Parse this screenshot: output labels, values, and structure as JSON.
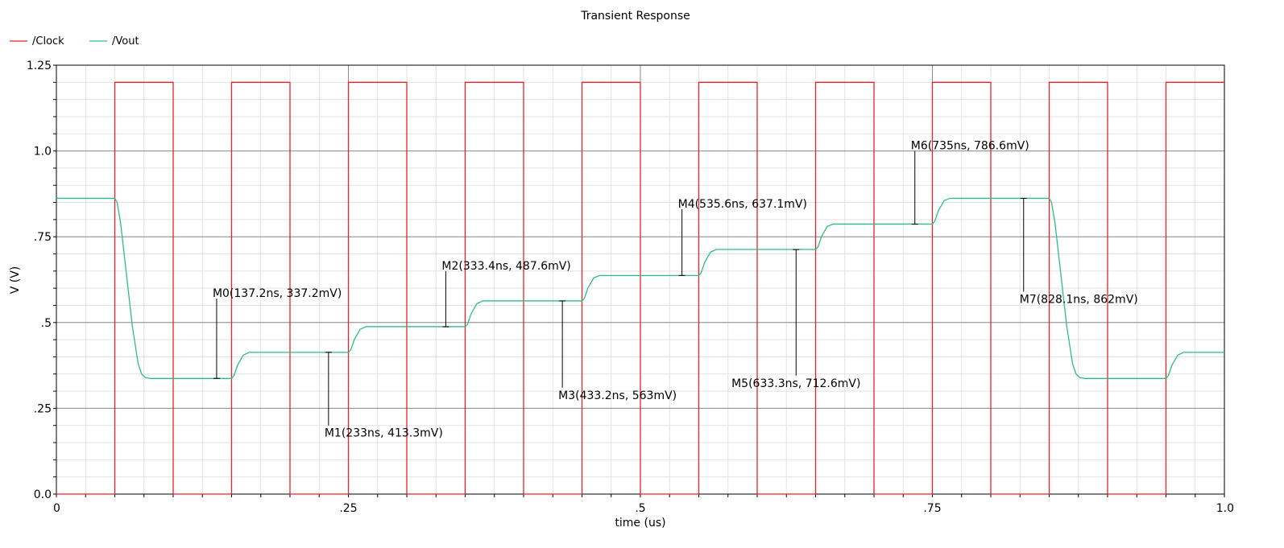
{
  "chart_data": {
    "type": "line",
    "title": "Transient Response",
    "xlabel": "time (us)",
    "ylabel": "V (V)",
    "xlim": [
      0,
      1.0
    ],
    "ylim": [
      0,
      1.25
    ],
    "grid": true,
    "legend_position": "top-left",
    "x_ticks": [
      {
        "value": 0,
        "label": "0"
      },
      {
        "value": 0.25,
        "label": ".25"
      },
      {
        "value": 0.5,
        "label": ".5"
      },
      {
        "value": 0.75,
        "label": ".75"
      },
      {
        "value": 1.0,
        "label": "1.0"
      }
    ],
    "y_ticks": [
      {
        "value": 0,
        "label": "0.0"
      },
      {
        "value": 0.25,
        "label": ".25"
      },
      {
        "value": 0.5,
        "label": ".5"
      },
      {
        "value": 0.75,
        "label": ".75"
      },
      {
        "value": 1.0,
        "label": "1.0"
      },
      {
        "value": 1.25,
        "label": "1.25"
      }
    ],
    "series": [
      {
        "name": "/Clock",
        "color": "#e8202a",
        "x": [
          0,
          0.05,
          0.05,
          0.1,
          0.1,
          0.15,
          0.15,
          0.2,
          0.2,
          0.25,
          0.25,
          0.3,
          0.3,
          0.35,
          0.35,
          0.4,
          0.4,
          0.45,
          0.45,
          0.5,
          0.5,
          0.55,
          0.55,
          0.6,
          0.6,
          0.65,
          0.65,
          0.7,
          0.7,
          0.75,
          0.75,
          0.8,
          0.8,
          0.85,
          0.85,
          0.9,
          0.9,
          0.95,
          0.95,
          1.0
        ],
        "values": [
          0,
          0,
          1.2,
          1.2,
          0,
          0,
          1.2,
          1.2,
          0,
          0,
          1.2,
          1.2,
          0,
          0,
          1.2,
          1.2,
          0,
          0,
          1.2,
          1.2,
          0,
          0,
          1.2,
          1.2,
          0,
          0,
          1.2,
          1.2,
          0,
          0,
          1.2,
          1.2,
          0,
          0,
          1.2,
          1.2,
          0,
          0,
          1.2,
          1.2
        ]
      },
      {
        "name": "/Vout",
        "color": "#2bbf7e",
        "x": [
          0,
          0.05,
          0.052,
          0.055,
          0.06,
          0.065,
          0.07,
          0.073,
          0.076,
          0.08,
          0.15,
          0.152,
          0.155,
          0.16,
          0.165,
          0.25,
          0.252,
          0.255,
          0.26,
          0.265,
          0.35,
          0.352,
          0.355,
          0.36,
          0.365,
          0.45,
          0.452,
          0.455,
          0.46,
          0.465,
          0.55,
          0.552,
          0.555,
          0.56,
          0.565,
          0.65,
          0.652,
          0.655,
          0.66,
          0.665,
          0.75,
          0.752,
          0.755,
          0.76,
          0.765,
          0.85,
          0.852,
          0.855,
          0.86,
          0.865,
          0.87,
          0.873,
          0.876,
          0.88,
          0.95,
          0.952,
          0.955,
          0.96,
          0.965,
          1.0
        ],
        "values": [
          0.862,
          0.862,
          0.85,
          0.79,
          0.64,
          0.49,
          0.38,
          0.35,
          0.34,
          0.337,
          0.337,
          0.345,
          0.375,
          0.405,
          0.413,
          0.413,
          0.42,
          0.45,
          0.48,
          0.488,
          0.488,
          0.495,
          0.525,
          0.555,
          0.563,
          0.563,
          0.57,
          0.6,
          0.63,
          0.637,
          0.637,
          0.645,
          0.675,
          0.705,
          0.713,
          0.713,
          0.72,
          0.75,
          0.78,
          0.787,
          0.787,
          0.795,
          0.825,
          0.855,
          0.862,
          0.862,
          0.85,
          0.79,
          0.64,
          0.49,
          0.38,
          0.35,
          0.34,
          0.337,
          0.337,
          0.345,
          0.375,
          0.405,
          0.413,
          0.413
        ]
      }
    ],
    "markers": [
      {
        "label": "M0(137.2ns, 337.2mV)",
        "x": 0.1372,
        "y": 0.3372,
        "label_y": 0.57,
        "anchor": "start"
      },
      {
        "label": "M1(233ns, 413.3mV)",
        "x": 0.233,
        "y": 0.4133,
        "label_y": 0.2,
        "anchor": "start"
      },
      {
        "label": "M2(333.4ns, 487.6mV)",
        "x": 0.3334,
        "y": 0.4876,
        "label_y": 0.65,
        "anchor": "start"
      },
      {
        "label": "M3(433.2ns, 563mV)",
        "x": 0.4332,
        "y": 0.563,
        "label_y": 0.31,
        "anchor": "start"
      },
      {
        "label": "M4(535.6ns, 637.1mV)",
        "x": 0.5356,
        "y": 0.6371,
        "label_y": 0.83,
        "anchor": "start"
      },
      {
        "label": "M5(633.3ns, 712.6mV)",
        "x": 0.6333,
        "y": 0.7126,
        "label_y": 0.345,
        "anchor": "middle"
      },
      {
        "label": "M6(735ns, 786.6mV)",
        "x": 0.735,
        "y": 0.7866,
        "label_y": 1.0,
        "anchor": "start"
      },
      {
        "label": "M7(828.1ns, 862mV)",
        "x": 0.8281,
        "y": 0.862,
        "label_y": 0.59,
        "anchor": "start"
      }
    ]
  }
}
